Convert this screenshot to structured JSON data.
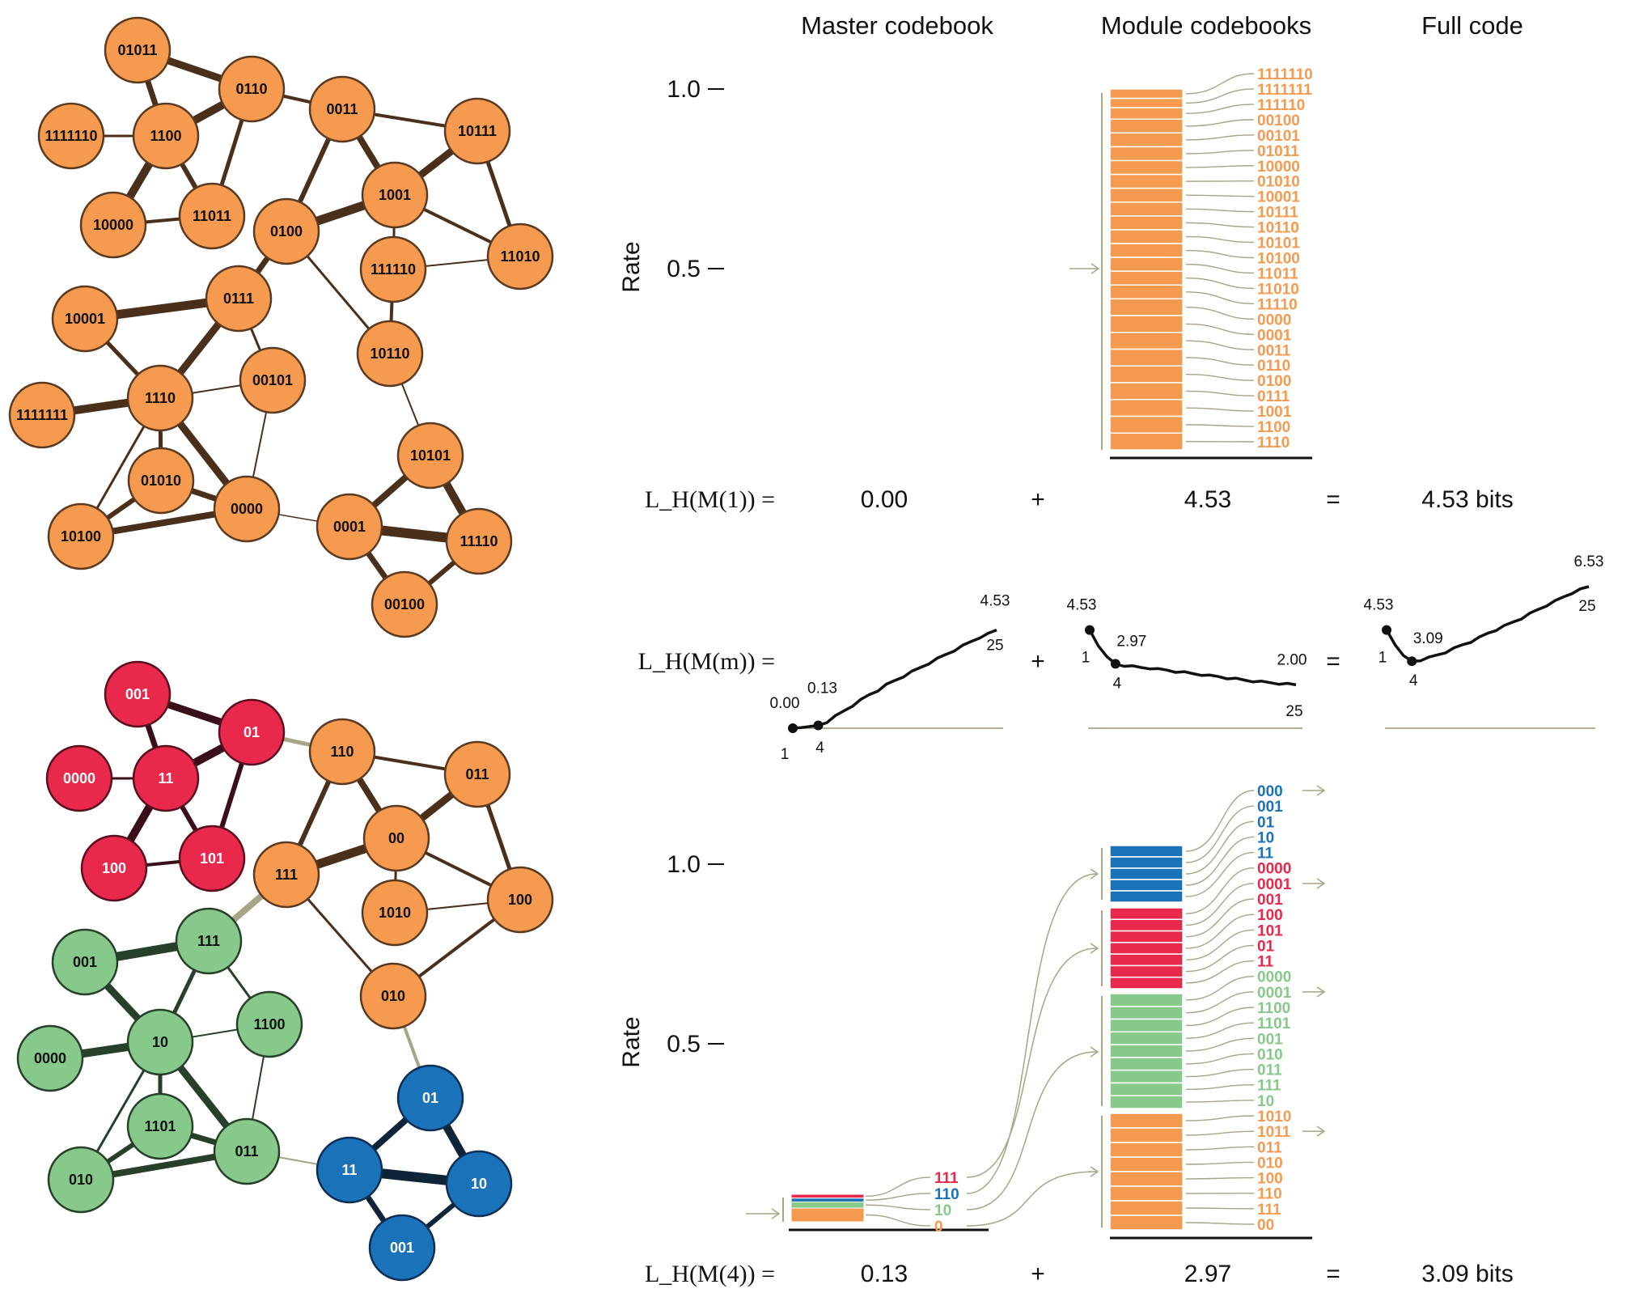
{
  "colors": {
    "orange": "#f59a4f",
    "red": "#e8294b",
    "green": "#86c98a",
    "blue": "#1a73b8",
    "connector": "#a6a585",
    "dark": "#111111"
  },
  "headers": {
    "master": "Master codebook",
    "module": "Module codebooks",
    "full": "Full code"
  },
  "rate_axis": {
    "label": "Rate",
    "ticks": [
      "1.0",
      "0.5"
    ]
  },
  "network_top": {
    "nodes": [
      {
        "id": "01011"
      },
      {
        "id": "0110"
      },
      {
        "id": "1111110"
      },
      {
        "id": "1100"
      },
      {
        "id": "0011"
      },
      {
        "id": "10111"
      },
      {
        "id": "10000"
      },
      {
        "id": "11011"
      },
      {
        "id": "1001"
      },
      {
        "id": "0100"
      },
      {
        "id": "111110"
      },
      {
        "id": "11010"
      },
      {
        "id": "0111"
      },
      {
        "id": "10001"
      },
      {
        "id": "10110"
      },
      {
        "id": "00101"
      },
      {
        "id": "1110"
      },
      {
        "id": "1111111"
      },
      {
        "id": "10101"
      },
      {
        "id": "01010"
      },
      {
        "id": "0000"
      },
      {
        "id": "10100"
      },
      {
        "id": "0001"
      },
      {
        "id": "11110"
      },
      {
        "id": "00100"
      }
    ]
  },
  "network_bottom": {
    "nodes": [
      {
        "id": "001",
        "module": "red"
      },
      {
        "id": "01",
        "module": "red"
      },
      {
        "id": "0000",
        "module": "red"
      },
      {
        "id": "11",
        "module": "red"
      },
      {
        "id": "100",
        "module": "red"
      },
      {
        "id": "101",
        "module": "red"
      },
      {
        "id": "110",
        "module": "orange"
      },
      {
        "id": "011",
        "module": "orange"
      },
      {
        "id": "00",
        "module": "orange"
      },
      {
        "id": "111",
        "module": "orange"
      },
      {
        "id": "1010",
        "module": "orange"
      },
      {
        "id": "100",
        "module": "orange"
      },
      {
        "id": "010",
        "module": "orange"
      },
      {
        "id": "001",
        "module": "green"
      },
      {
        "id": "111",
        "module": "green"
      },
      {
        "id": "1100",
        "module": "green"
      },
      {
        "id": "10",
        "module": "green"
      },
      {
        "id": "0000",
        "module": "green"
      },
      {
        "id": "1101",
        "module": "green"
      },
      {
        "id": "011",
        "module": "green"
      },
      {
        "id": "010",
        "module": "green"
      },
      {
        "id": "01",
        "module": "blue"
      },
      {
        "id": "11",
        "module": "blue"
      },
      {
        "id": "10",
        "module": "blue"
      },
      {
        "id": "001",
        "module": "blue"
      }
    ]
  },
  "top_codebook": {
    "codes": [
      "1111110",
      "1111111",
      "111110",
      "00100",
      "00101",
      "01011",
      "10000",
      "01010",
      "10001",
      "10111",
      "10110",
      "10101",
      "10100",
      "11011",
      "11010",
      "11110",
      "0000",
      "0001",
      "0011",
      "0110",
      "0100",
      "0111",
      "1001",
      "1100",
      "1110"
    ]
  },
  "equation_top": {
    "lhs": "L_H(M(1)) =",
    "master": "0.00",
    "plus": "+",
    "module": "4.53",
    "equals": "=",
    "full": "4.53 bits"
  },
  "equation_mid": {
    "lhs": "L_H(M(m)) =",
    "plus": "+",
    "equals": "="
  },
  "chart_data": [
    {
      "type": "line",
      "name_role": "master",
      "x": [
        1,
        2,
        3,
        4,
        5,
        6,
        7,
        8,
        9,
        10,
        11,
        12,
        13,
        14,
        15,
        16,
        17,
        18,
        19,
        20,
        21,
        22,
        23,
        24,
        25
      ],
      "y": [
        0.0,
        0.03,
        0.08,
        0.13,
        0.3,
        0.55,
        0.8,
        1.05,
        1.3,
        1.55,
        1.75,
        2.0,
        2.2,
        2.4,
        2.6,
        2.8,
        3.0,
        3.2,
        3.4,
        3.6,
        3.8,
        4.0,
        4.2,
        4.35,
        4.53
      ],
      "labels": [
        {
          "x": 1,
          "value": "0.00"
        },
        {
          "x": 4,
          "value": "0.13"
        },
        {
          "x": 25,
          "value": "4.53"
        }
      ],
      "x_ticks": [
        "1",
        "4",
        "25"
      ],
      "ylim": [
        0,
        6.53
      ]
    },
    {
      "type": "line",
      "name_role": "module",
      "x": [
        1,
        2,
        3,
        4,
        5,
        6,
        7,
        8,
        9,
        10,
        11,
        12,
        13,
        14,
        15,
        16,
        17,
        18,
        19,
        20,
        21,
        22,
        23,
        24,
        25
      ],
      "y": [
        4.53,
        3.8,
        3.3,
        2.97,
        2.9,
        2.85,
        2.8,
        2.78,
        2.72,
        2.68,
        2.62,
        2.58,
        2.52,
        2.48,
        2.42,
        2.38,
        2.32,
        2.28,
        2.22,
        2.18,
        2.14,
        2.1,
        2.07,
        2.04,
        2.0
      ],
      "labels": [
        {
          "x": 1,
          "value": "4.53"
        },
        {
          "x": 4,
          "value": "2.97"
        },
        {
          "x": 25,
          "value": "2.00"
        }
      ],
      "x_ticks": [
        "1",
        "4",
        "25"
      ],
      "ylim": [
        0,
        6.53
      ]
    },
    {
      "type": "line",
      "name_role": "full",
      "x": [
        1,
        2,
        3,
        4,
        5,
        6,
        7,
        8,
        9,
        10,
        11,
        12,
        13,
        14,
        15,
        16,
        17,
        18,
        19,
        20,
        21,
        22,
        23,
        24,
        25
      ],
      "y": [
        4.53,
        3.85,
        3.35,
        3.09,
        3.15,
        3.25,
        3.38,
        3.52,
        3.68,
        3.85,
        4.0,
        4.18,
        4.38,
        4.55,
        4.72,
        4.9,
        5.08,
        5.28,
        5.48,
        5.68,
        5.86,
        6.06,
        6.25,
        6.4,
        6.53
      ],
      "labels": [
        {
          "x": 1,
          "value": "4.53"
        },
        {
          "x": 4,
          "value": "3.09"
        },
        {
          "x": 25,
          "value": "6.53"
        }
      ],
      "x_ticks": [
        "1",
        "4",
        "25"
      ],
      "ylim": [
        0,
        6.53
      ]
    }
  ],
  "bottom_master_codes": [
    {
      "code": "111",
      "module": "red"
    },
    {
      "code": "110",
      "module": "blue"
    },
    {
      "code": "10",
      "module": "green"
    },
    {
      "code": "0",
      "module": "orange"
    }
  ],
  "bottom_module_codes": [
    {
      "code": "000",
      "module": "blue"
    },
    {
      "code": "001",
      "module": "blue"
    },
    {
      "code": "01",
      "module": "blue"
    },
    {
      "code": "10",
      "module": "blue"
    },
    {
      "code": "11",
      "module": "blue"
    },
    {
      "code": "0000",
      "module": "red"
    },
    {
      "code": "0001",
      "module": "red"
    },
    {
      "code": "001",
      "module": "red"
    },
    {
      "code": "100",
      "module": "red"
    },
    {
      "code": "101",
      "module": "red"
    },
    {
      "code": "01",
      "module": "red"
    },
    {
      "code": "11",
      "module": "red"
    },
    {
      "code": "0000",
      "module": "green"
    },
    {
      "code": "0001",
      "module": "green"
    },
    {
      "code": "1100",
      "module": "green"
    },
    {
      "code": "1101",
      "module": "green"
    },
    {
      "code": "001",
      "module": "green"
    },
    {
      "code": "010",
      "module": "green"
    },
    {
      "code": "011",
      "module": "green"
    },
    {
      "code": "111",
      "module": "green"
    },
    {
      "code": "10",
      "module": "green"
    },
    {
      "code": "1010",
      "module": "orange"
    },
    {
      "code": "1011",
      "module": "orange"
    },
    {
      "code": "011",
      "module": "orange"
    },
    {
      "code": "010",
      "module": "orange"
    },
    {
      "code": "100",
      "module": "orange"
    },
    {
      "code": "110",
      "module": "orange"
    },
    {
      "code": "111",
      "module": "orange"
    },
    {
      "code": "00",
      "module": "orange"
    }
  ],
  "equation_bottom": {
    "lhs": "L_H(M(4)) =",
    "master": "0.13",
    "plus": "+",
    "module": "2.97",
    "equals": "=",
    "full": "3.09 bits"
  }
}
